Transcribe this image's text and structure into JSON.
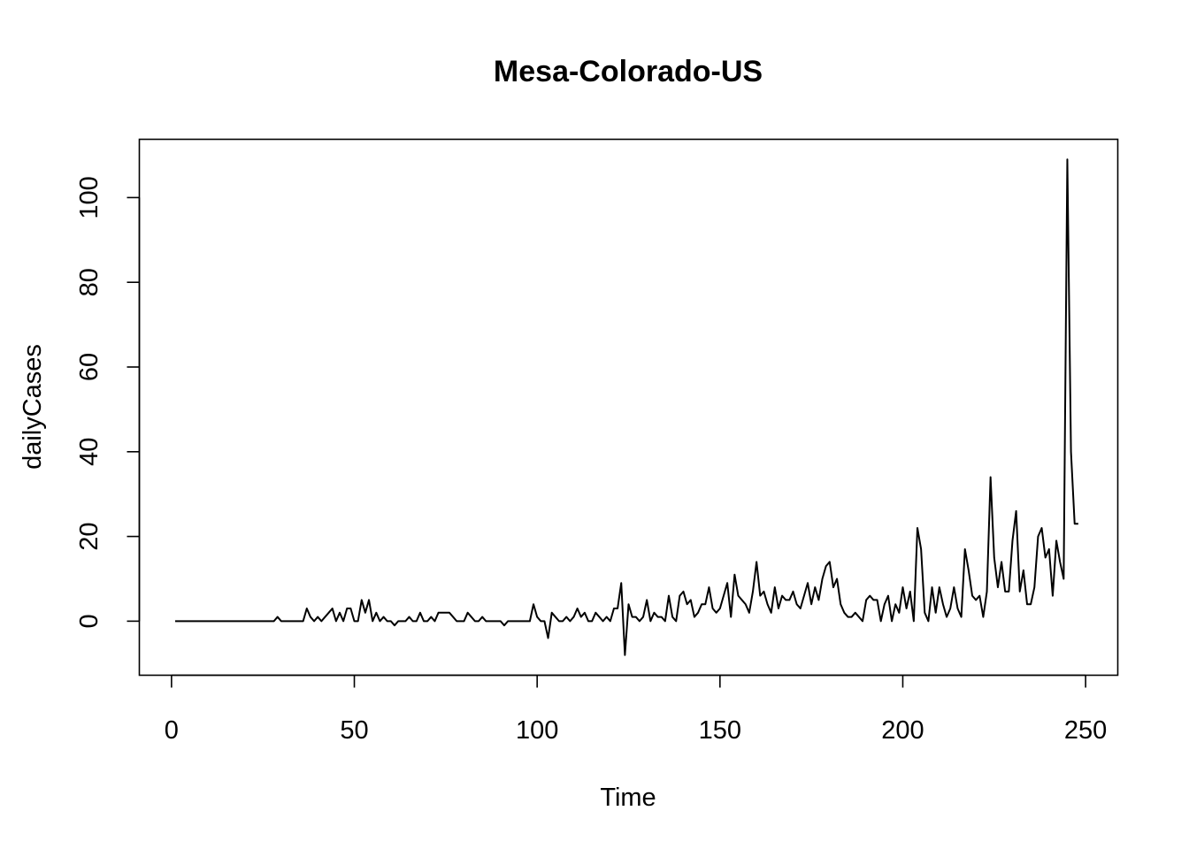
{
  "chart_data": {
    "type": "line",
    "title": "Mesa-Colorado-US",
    "xlabel": "Time",
    "ylabel": "dailyCases",
    "xlim": [
      -8.8,
      258.8
    ],
    "ylim": [
      -12.76,
      113.76
    ],
    "x_ticks": [
      0,
      50,
      100,
      150,
      200,
      250
    ],
    "y_ticks": [
      0,
      20,
      40,
      60,
      80,
      100
    ],
    "grid": false,
    "legend": "none",
    "series": [
      {
        "values": [
          0,
          0,
          0,
          0,
          0,
          0,
          0,
          0,
          0,
          0,
          0,
          0,
          0,
          0,
          0,
          0,
          0,
          0,
          0,
          0,
          0,
          0,
          0,
          0,
          0,
          0,
          0,
          0,
          1,
          0,
          0,
          0,
          0,
          0,
          0,
          0,
          3,
          1,
          0,
          1,
          0,
          1,
          2,
          3,
          0,
          2,
          0,
          3,
          3,
          0,
          0,
          5,
          2,
          5,
          0,
          2,
          0,
          1,
          0,
          0,
          -1,
          0,
          0,
          0,
          1,
          0,
          0,
          2,
          0,
          0,
          1,
          0,
          2,
          2,
          2,
          2,
          1,
          0,
          0,
          0,
          2,
          1,
          0,
          0,
          1,
          0,
          0,
          0,
          0,
          0,
          -1,
          0,
          0,
          0,
          0,
          0,
          0,
          0,
          4,
          1,
          0,
          0,
          -4,
          2,
          1,
          0,
          0,
          1,
          0,
          1,
          3,
          1,
          2,
          0,
          0,
          2,
          1,
          0,
          1,
          0,
          3,
          3,
          9,
          -8,
          4,
          1,
          1,
          0,
          1,
          5,
          0,
          2,
          1,
          1,
          0,
          6,
          1,
          0,
          6,
          7,
          4,
          5,
          1,
          2,
          4,
          4,
          8,
          3,
          2,
          3,
          6,
          9,
          1,
          11,
          6,
          5,
          4,
          2,
          7,
          14,
          6,
          7,
          4,
          2,
          8,
          3,
          6,
          5,
          5,
          7,
          4,
          3,
          6,
          9,
          4,
          8,
          5,
          10,
          13,
          14,
          8,
          10,
          4,
          2,
          1,
          1,
          2,
          1,
          0,
          5,
          6,
          5,
          5,
          0,
          4,
          6,
          0,
          4,
          2,
          8,
          3,
          7,
          0,
          22,
          17,
          2,
          0,
          8,
          2,
          8,
          4,
          1,
          3,
          8,
          3,
          1,
          17,
          12,
          6,
          5,
          6,
          1,
          7,
          34,
          15,
          8,
          14,
          7,
          7,
          19,
          26,
          7,
          12,
          4,
          4,
          8,
          20,
          22,
          15,
          17,
          6,
          19,
          14,
          10,
          109,
          40,
          23,
          23
        ]
      }
    ]
  }
}
